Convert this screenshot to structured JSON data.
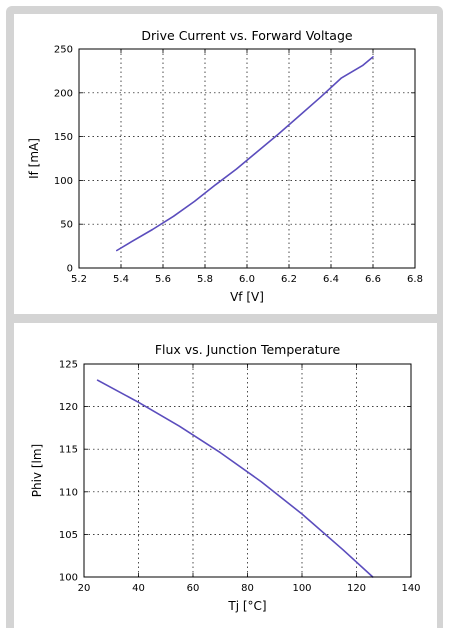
{
  "colors": {
    "frame": "#d4d4d4",
    "line": "#5b4dbd",
    "grid": "#000000"
  },
  "chart_data": [
    {
      "type": "line",
      "title": "Drive Current vs. Forward Voltage",
      "xlabel": "Vf [V]",
      "ylabel": "If [mA]",
      "xlim": [
        5.2,
        6.8
      ],
      "ylim": [
        0,
        250
      ],
      "xticks": [
        "5.2",
        "5.4",
        "5.6",
        "5.8",
        "6.0",
        "6.2",
        "6.4",
        "6.6",
        "6.8"
      ],
      "yticks": [
        "0",
        "50",
        "100",
        "150",
        "200",
        "250"
      ],
      "grid": true,
      "series": [
        {
          "x": [
            5.38,
            5.45,
            5.55,
            5.65,
            5.75,
            5.85,
            5.95,
            6.05,
            6.15,
            6.25,
            6.35,
            6.45,
            6.55,
            6.6
          ],
          "y": [
            20,
            30,
            44,
            59,
            76,
            95,
            113,
            133,
            153,
            174,
            195,
            217,
            231,
            241
          ]
        }
      ]
    },
    {
      "type": "line",
      "title": "Flux vs. Junction Temperature",
      "xlabel": "Tj [°C]",
      "ylabel": "Phiv [lm]",
      "xlim": [
        20,
        140
      ],
      "ylim": [
        100,
        125
      ],
      "xticks": [
        "20",
        "40",
        "60",
        "80",
        "100",
        "120",
        "140"
      ],
      "yticks": [
        "100",
        "105",
        "110",
        "115",
        "120",
        "125"
      ],
      "grid": true,
      "series": [
        {
          "x": [
            25,
            40,
            55,
            70,
            85,
            100,
            115,
            126
          ],
          "y": [
            123.1,
            120.5,
            117.7,
            114.6,
            111.2,
            107.4,
            103.2,
            100
          ]
        }
      ]
    }
  ]
}
